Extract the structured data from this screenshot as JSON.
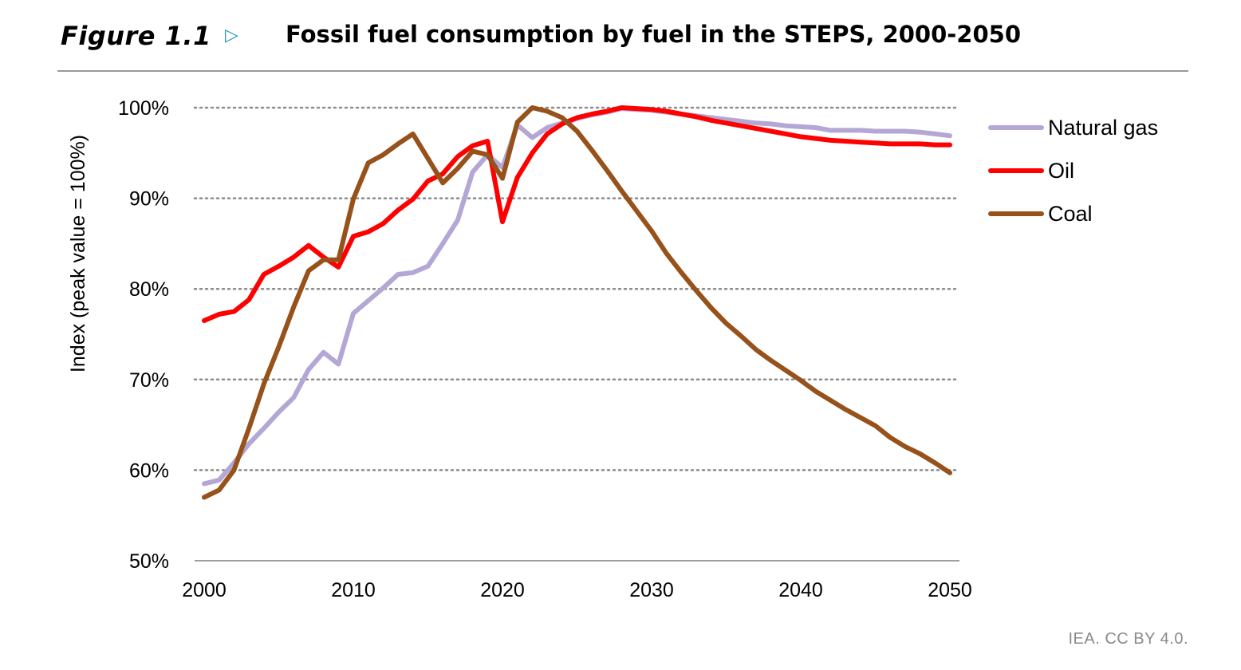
{
  "figure": {
    "label": "Figure 1.1",
    "arrow_icon": "triangle-right-icon",
    "title": "Fossil fuel consumption by fuel in the STEPS, 2000-2050",
    "credit": "IEA. CC BY 4.0."
  },
  "chart_data": {
    "type": "line",
    "title": "Fossil fuel consumption by fuel in the STEPS, 2000-2050",
    "xlabel": "",
    "ylabel": "Index (peak value = 100%)",
    "xlim": [
      2000,
      2050
    ],
    "ylim": [
      50,
      100
    ],
    "x_ticks": [
      2000,
      2010,
      2020,
      2030,
      2040,
      2050
    ],
    "x_tick_labels": [
      "2000",
      "2010",
      "2020",
      "2030",
      "2040",
      "2050"
    ],
    "y_ticks": [
      50,
      60,
      70,
      80,
      90,
      100
    ],
    "y_tick_labels": [
      "50%",
      "60%",
      "70%",
      "80%",
      "90%",
      "100%"
    ],
    "grid": "horizontal dotted",
    "legend_position": "right",
    "x": [
      2000,
      2001,
      2002,
      2003,
      2004,
      2005,
      2006,
      2007,
      2008,
      2009,
      2010,
      2011,
      2012,
      2013,
      2014,
      2015,
      2016,
      2017,
      2018,
      2019,
      2020,
      2021,
      2022,
      2023,
      2024,
      2025,
      2026,
      2027,
      2028,
      2029,
      2030,
      2031,
      2032,
      2033,
      2034,
      2035,
      2036,
      2037,
      2038,
      2039,
      2040,
      2041,
      2042,
      2043,
      2044,
      2045,
      2046,
      2047,
      2048,
      2049,
      2050
    ],
    "series": [
      {
        "name": "Natural gas",
        "color": "#b4a7d6",
        "values": [
          58.5,
          58.9,
          60.8,
          62.9,
          64.6,
          66.4,
          68.0,
          71.1,
          73.0,
          71.7,
          77.3,
          78.7,
          80.1,
          81.6,
          81.8,
          82.5,
          85.0,
          87.6,
          92.9,
          94.8,
          93.4,
          98.1,
          96.7,
          97.8,
          98.3,
          98.8,
          99.2,
          99.5,
          99.9,
          99.8,
          99.7,
          99.5,
          99.3,
          99.1,
          98.9,
          98.7,
          98.5,
          98.3,
          98.2,
          98.0,
          97.9,
          97.8,
          97.5,
          97.5,
          97.5,
          97.4,
          97.4,
          97.4,
          97.3,
          97.1,
          96.9
        ]
      },
      {
        "name": "Oil",
        "color": "#ff0000",
        "values": [
          76.5,
          77.2,
          77.5,
          78.8,
          81.6,
          82.5,
          83.5,
          84.8,
          83.5,
          82.4,
          85.8,
          86.3,
          87.2,
          88.7,
          89.9,
          91.9,
          92.7,
          94.6,
          95.8,
          96.3,
          87.4,
          92.3,
          95.0,
          97.1,
          98.2,
          98.9,
          99.3,
          99.6,
          100.0,
          99.9,
          99.8,
          99.6,
          99.3,
          99.0,
          98.6,
          98.3,
          98.0,
          97.7,
          97.4,
          97.1,
          96.8,
          96.6,
          96.4,
          96.3,
          96.2,
          96.1,
          96.0,
          96.0,
          96.0,
          95.9,
          95.9
        ]
      },
      {
        "name": "Coal",
        "color": "#96521a",
        "values": [
          57.0,
          57.8,
          60.0,
          64.6,
          69.5,
          73.6,
          78.0,
          82.0,
          83.2,
          83.2,
          89.9,
          93.9,
          94.8,
          96.0,
          97.1,
          94.4,
          91.7,
          93.3,
          95.2,
          94.8,
          92.2,
          98.4,
          100.0,
          99.6,
          98.9,
          97.4,
          95.3,
          93.1,
          90.8,
          88.6,
          86.4,
          83.9,
          81.8,
          79.8,
          77.9,
          76.2,
          74.8,
          73.3,
          72.1,
          71.0,
          69.9,
          68.7,
          67.7,
          66.7,
          65.8,
          64.9,
          63.6,
          62.6,
          61.8,
          60.8,
          59.7
        ]
      }
    ]
  }
}
